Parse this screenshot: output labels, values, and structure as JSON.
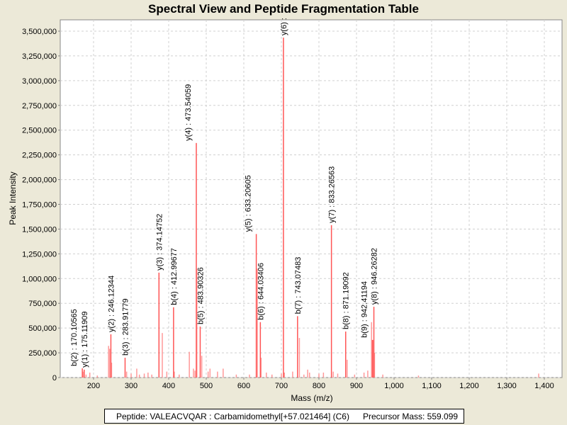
{
  "chart_data": {
    "type": "bar",
    "title": "Spectral View and Peptide Fragmentation Table",
    "xlabel": "Mass (m/z)",
    "ylabel": "Peak Intensity",
    "xlim": [
      111,
      1447
    ],
    "ylim": [
      0,
      3600000
    ],
    "grid": true,
    "xticks": [
      200,
      300,
      400,
      500,
      600,
      700,
      800,
      900,
      1000,
      1100,
      1200,
      1300,
      1400
    ],
    "xtick_labels": [
      "200",
      "300",
      "400",
      "500",
      "600",
      "700",
      "800",
      "900",
      "1,000",
      "1,100",
      "1,200",
      "1,300",
      "1,400"
    ],
    "yticks": [
      0,
      250000,
      500000,
      750000,
      1000000,
      1250000,
      1500000,
      1750000,
      2000000,
      2250000,
      2500000,
      2750000,
      3000000,
      3250000,
      3500000
    ],
    "ytick_labels": [
      "0",
      "250,000",
      "500,000",
      "750,000",
      "1,000,000",
      "1,250,000",
      "1,500,000",
      "1,750,000",
      "2,000,000",
      "2,250,000",
      "2,500,000",
      "2,750,000",
      "3,000,000",
      "3,250,000",
      "3,500,000"
    ],
    "annotated_peaks": [
      {
        "mz": 170.1,
        "intensity": 93000,
        "label": "b(2) : 170.10565"
      },
      {
        "mz": 175.1,
        "intensity": 80000,
        "label": "y(1) : 175.11909"
      },
      {
        "mz": 246.12,
        "intensity": 437000,
        "label": "y(2) : 246.12344"
      },
      {
        "mz": 283.92,
        "intensity": 200000,
        "label": "b(3) : 283.91779"
      },
      {
        "mz": 374.15,
        "intensity": 1060000,
        "label": "y(3) : 374.14752"
      },
      {
        "mz": 412.99,
        "intensity": 710000,
        "label": "b(4) : 412.99677"
      },
      {
        "mz": 473.54,
        "intensity": 2370000,
        "label": "y(4) : 473.54059"
      },
      {
        "mz": 483.9,
        "intensity": 515000,
        "label": "b(5) : 483.90326"
      },
      {
        "mz": 633.21,
        "intensity": 1450000,
        "label": "y(5) : 633.20605"
      },
      {
        "mz": 644.03,
        "intensity": 560000,
        "label": "b(6) : 644.03406"
      },
      {
        "mz": 705.5,
        "intensity": 3435000,
        "label": "y(6) :"
      },
      {
        "mz": 743.07,
        "intensity": 620000,
        "label": "b(7) : 743.07483"
      },
      {
        "mz": 833.27,
        "intensity": 1540000,
        "label": "y(7) : 833.26563"
      },
      {
        "mz": 871.19,
        "intensity": 465000,
        "label": "b(8) : 871.19092"
      },
      {
        "mz": 942.4,
        "intensity": 380000,
        "label": "b(9) : 942.41194"
      },
      {
        "mz": 946.26,
        "intensity": 715000,
        "label": "y(8) : 946.26282"
      }
    ],
    "other_peaks": [
      [
        172,
        60000
      ],
      [
        180,
        30000
      ],
      [
        190,
        50000
      ],
      [
        210,
        20000
      ],
      [
        240,
        320000
      ],
      [
        243,
        290000
      ],
      [
        248,
        150000
      ],
      [
        288,
        60000
      ],
      [
        300,
        40000
      ],
      [
        315,
        90000
      ],
      [
        322,
        30000
      ],
      [
        335,
        40000
      ],
      [
        345,
        50000
      ],
      [
        355,
        30000
      ],
      [
        383,
        450000
      ],
      [
        395,
        60000
      ],
      [
        415,
        60000
      ],
      [
        428,
        30000
      ],
      [
        455,
        260000
      ],
      [
        466,
        90000
      ],
      [
        470,
        70000
      ],
      [
        475,
        1100000
      ],
      [
        488,
        220000
      ],
      [
        505,
        60000
      ],
      [
        510,
        90000
      ],
      [
        530,
        60000
      ],
      [
        545,
        90000
      ],
      [
        580,
        30000
      ],
      [
        615,
        30000
      ],
      [
        636,
        1100000
      ],
      [
        646,
        200000
      ],
      [
        660,
        50000
      ],
      [
        675,
        30000
      ],
      [
        700,
        40000
      ],
      [
        708,
        50000
      ],
      [
        730,
        60000
      ],
      [
        748,
        400000
      ],
      [
        760,
        30000
      ],
      [
        770,
        80000
      ],
      [
        775,
        50000
      ],
      [
        800,
        40000
      ],
      [
        812,
        50000
      ],
      [
        838,
        60000
      ],
      [
        850,
        40000
      ],
      [
        875,
        180000
      ],
      [
        895,
        30000
      ],
      [
        920,
        50000
      ],
      [
        930,
        70000
      ],
      [
        940,
        560000
      ],
      [
        944,
        380000
      ],
      [
        948,
        250000
      ],
      [
        970,
        30000
      ],
      [
        1065,
        20000
      ],
      [
        1385,
        40000
      ]
    ],
    "series_color": "#FF5555",
    "legend": {
      "peptide": "Peptide: VALEACVQAR : Carbamidomethyl[+57.021464] (C6)",
      "precursor": "Precursor Mass: 559.099"
    }
  }
}
